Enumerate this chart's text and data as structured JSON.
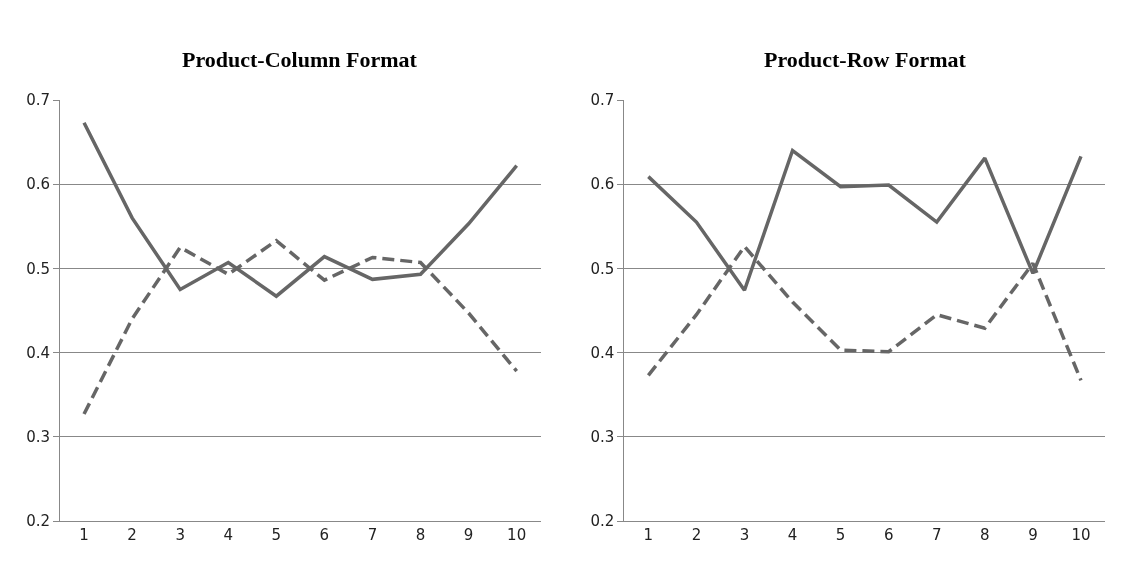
{
  "chart_data": [
    {
      "type": "line",
      "title": "Product-Column Format",
      "categories": [
        "1",
        "2",
        "3",
        "4",
        "5",
        "6",
        "7",
        "8",
        "9",
        "10"
      ],
      "ylim": [
        0.2,
        0.7
      ],
      "yticks": [
        0.2,
        0.3,
        0.4,
        0.5,
        0.6,
        0.7
      ],
      "grid": "y",
      "series": [
        {
          "color": "#666666",
          "line_style": "solid",
          "values": [
            0.673,
            0.56,
            0.475,
            0.507,
            0.467,
            0.514,
            0.487,
            0.493,
            0.553,
            0.622
          ]
        },
        {
          "color": "#666666",
          "line_style": "dashed",
          "values": [
            0.327,
            0.44,
            0.525,
            0.493,
            0.533,
            0.486,
            0.513,
            0.507,
            0.447,
            0.378
          ]
        }
      ]
    },
    {
      "type": "line",
      "title": "Product-Row Format",
      "categories": [
        "1",
        "2",
        "3",
        "4",
        "5",
        "6",
        "7",
        "8",
        "9",
        "10"
      ],
      "ylim": [
        0.2,
        0.7
      ],
      "yticks": [
        0.2,
        0.3,
        0.4,
        0.5,
        0.6,
        0.7
      ],
      "grid": "y",
      "series": [
        {
          "color": "#666666",
          "line_style": "solid",
          "values": [
            0.609,
            0.555,
            0.474,
            0.64,
            0.597,
            0.599,
            0.555,
            0.631,
            0.494,
            0.633
          ]
        },
        {
          "color": "#666666",
          "line_style": "dashed",
          "values": [
            0.373,
            0.445,
            0.526,
            0.46,
            0.403,
            0.401,
            0.445,
            0.429,
            0.506,
            0.367
          ]
        }
      ]
    }
  ]
}
